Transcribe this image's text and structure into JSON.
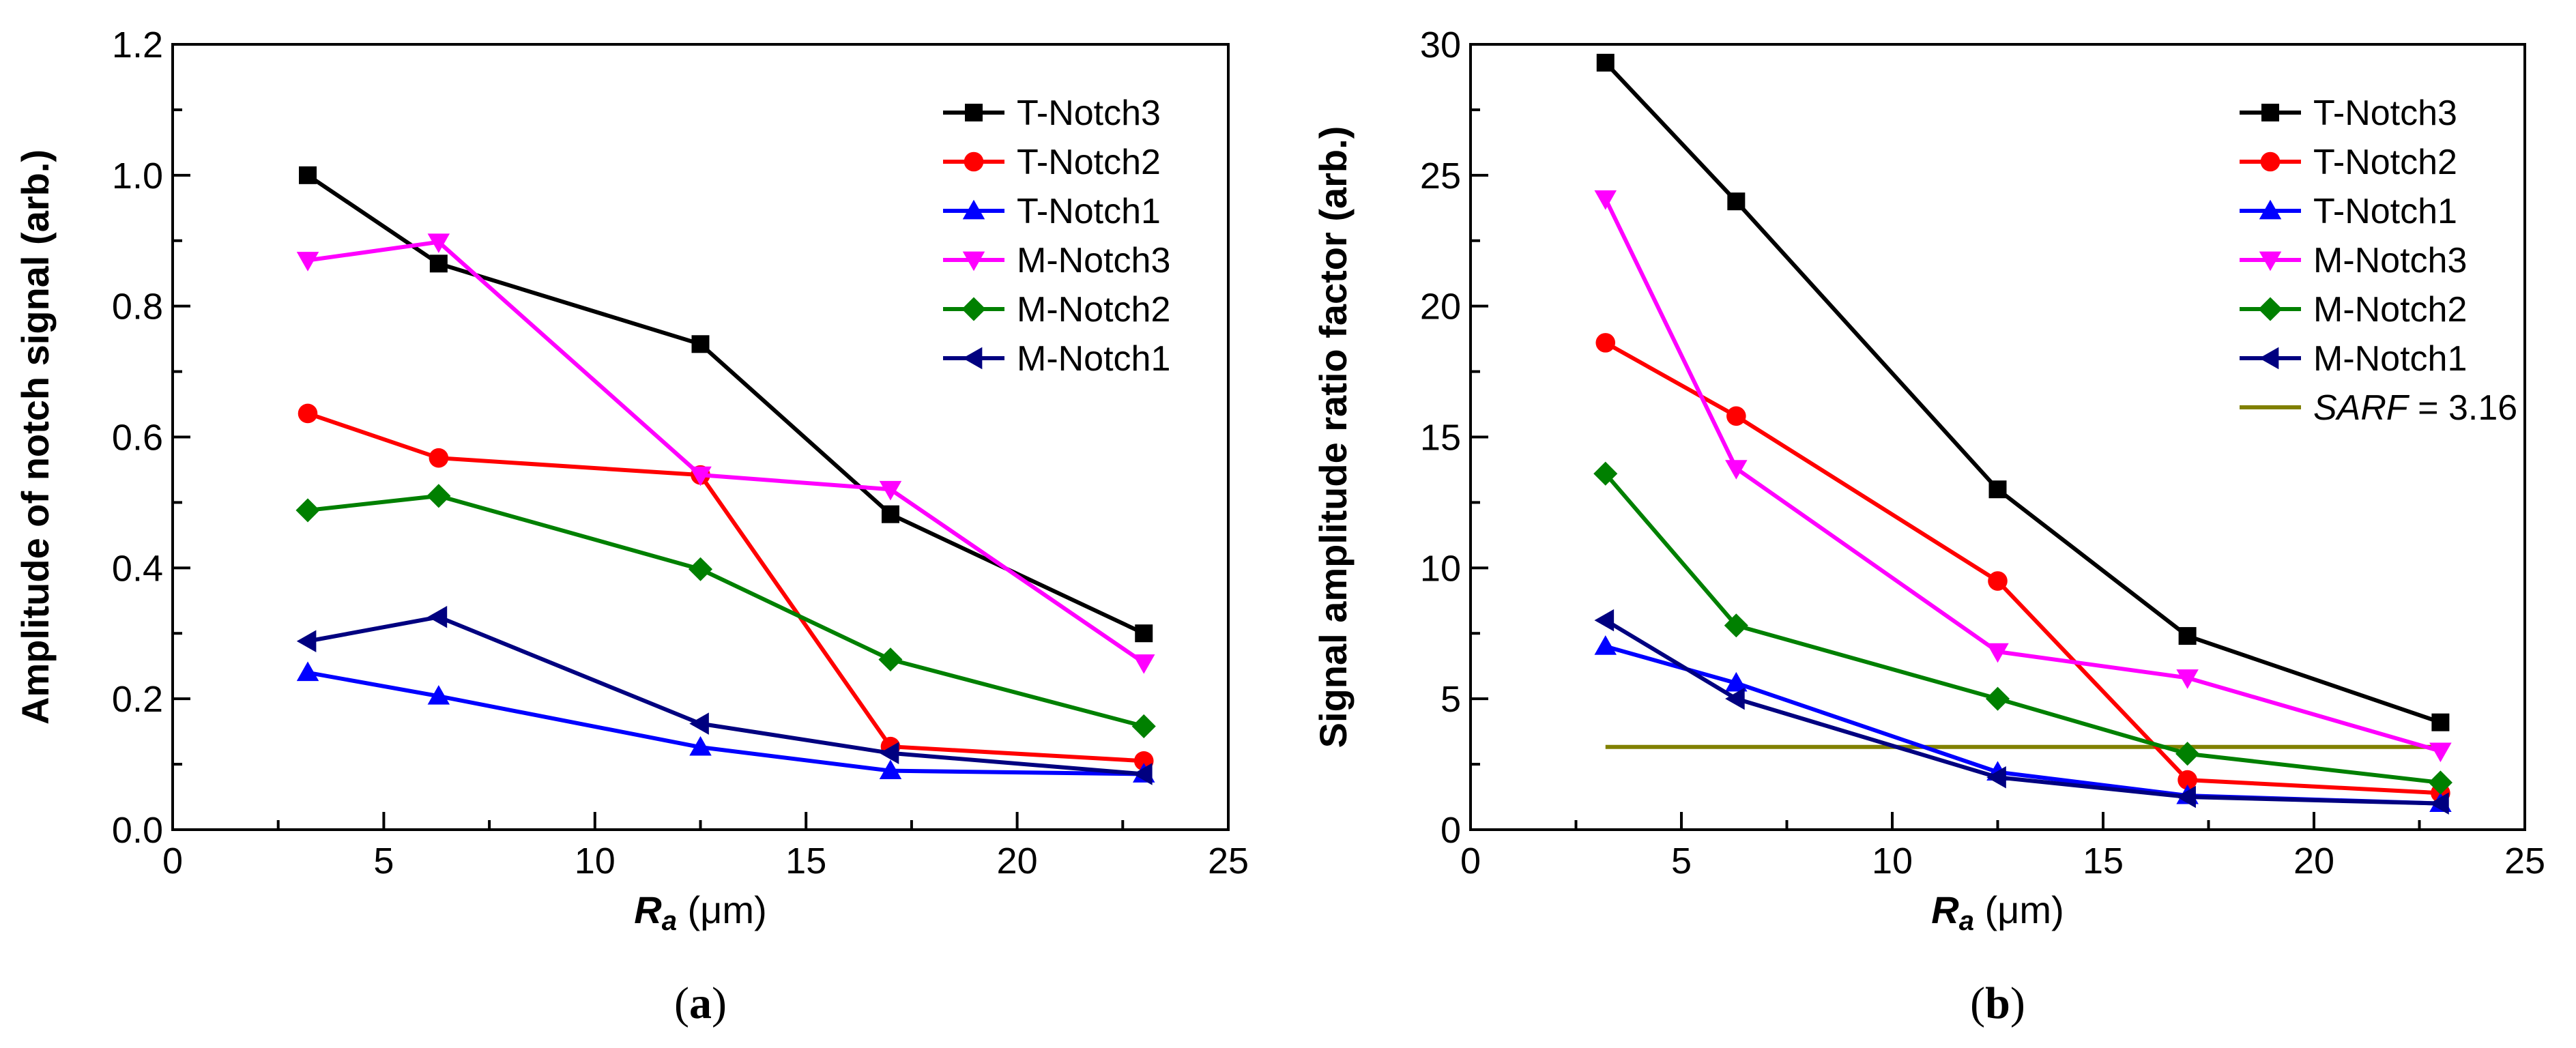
{
  "chart_data": [
    {
      "type": "line",
      "panel_label_prefix": "(",
      "panel_label_letter": "a",
      "panel_label_suffix": ")",
      "ylabel": "Amplitude of notch signal (arb.)",
      "xlabel_main": "R",
      "xlabel_sub": "a",
      "xlabel_unit": "(μm)",
      "xlim": [
        0,
        25
      ],
      "ylim": [
        0,
        1.2
      ],
      "xticks": [
        0,
        5,
        10,
        15,
        20,
        25
      ],
      "yticks": [
        0.0,
        0.2,
        0.4,
        0.6,
        0.8,
        1.0,
        1.2
      ],
      "ytick_decimals": 1,
      "legend_position": "top-right",
      "x": [
        3.2,
        6.3,
        12.5,
        17,
        23
      ],
      "series": [
        {
          "name": "T-Notch3",
          "color": "#000000",
          "marker": "square",
          "values": [
            1.0,
            0.865,
            0.742,
            0.482,
            0.3
          ]
        },
        {
          "name": "T-Notch2",
          "color": "#ff0000",
          "marker": "circle",
          "values": [
            0.636,
            0.568,
            0.542,
            0.127,
            0.105
          ]
        },
        {
          "name": "T-Notch1",
          "color": "#0000ff",
          "marker": "triangle-up",
          "values": [
            0.24,
            0.204,
            0.126,
            0.09,
            0.085
          ]
        },
        {
          "name": "M-Notch3",
          "color": "#ff00ff",
          "marker": "triangle-down",
          "values": [
            0.87,
            0.898,
            0.542,
            0.52,
            0.255
          ]
        },
        {
          "name": "M-Notch2",
          "color": "#008000",
          "marker": "diamond",
          "values": [
            0.488,
            0.51,
            0.398,
            0.26,
            0.158
          ]
        },
        {
          "name": "M-Notch1",
          "color": "#000080",
          "marker": "triangle-left",
          "values": [
            0.288,
            0.325,
            0.162,
            0.117,
            0.085
          ]
        }
      ],
      "reference_line": null
    },
    {
      "type": "line",
      "panel_label_prefix": "(",
      "panel_label_letter": "b",
      "panel_label_suffix": ")",
      "ylabel": "Signal amplitude ratio factor (arb.)",
      "xlabel_main": "R",
      "xlabel_sub": "a",
      "xlabel_unit": "(μm)",
      "xlim": [
        0,
        25
      ],
      "ylim": [
        0,
        30
      ],
      "xticks": [
        0,
        5,
        10,
        15,
        20,
        25
      ],
      "yticks": [
        0,
        5,
        10,
        15,
        20,
        25,
        30
      ],
      "ytick_decimals": 0,
      "legend_position": "top-right",
      "x": [
        3.2,
        6.3,
        12.5,
        17,
        23
      ],
      "series": [
        {
          "name": "T-Notch3",
          "color": "#000000",
          "marker": "square",
          "values": [
            29.3,
            24.0,
            13.0,
            7.4,
            4.1
          ]
        },
        {
          "name": "T-Notch2",
          "color": "#ff0000",
          "marker": "circle",
          "values": [
            18.6,
            15.8,
            9.5,
            1.9,
            1.4
          ]
        },
        {
          "name": "T-Notch1",
          "color": "#0000ff",
          "marker": "triangle-up",
          "values": [
            7.0,
            5.6,
            2.2,
            1.3,
            1.0
          ]
        },
        {
          "name": "M-Notch3",
          "color": "#ff00ff",
          "marker": "triangle-down",
          "values": [
            24.1,
            13.8,
            6.8,
            5.8,
            3.0
          ]
        },
        {
          "name": "M-Notch2",
          "color": "#008000",
          "marker": "diamond",
          "values": [
            13.6,
            7.8,
            5.0,
            2.9,
            1.8
          ]
        },
        {
          "name": "M-Notch1",
          "color": "#000080",
          "marker": "triangle-left",
          "values": [
            8.0,
            5.0,
            2.0,
            1.25,
            1.0
          ]
        }
      ],
      "reference_line": {
        "label_italic": "SARF",
        "label_rest": " = 3.16",
        "value": 3.16,
        "x_range": [
          3.2,
          23
        ],
        "color": "#808000"
      }
    }
  ]
}
